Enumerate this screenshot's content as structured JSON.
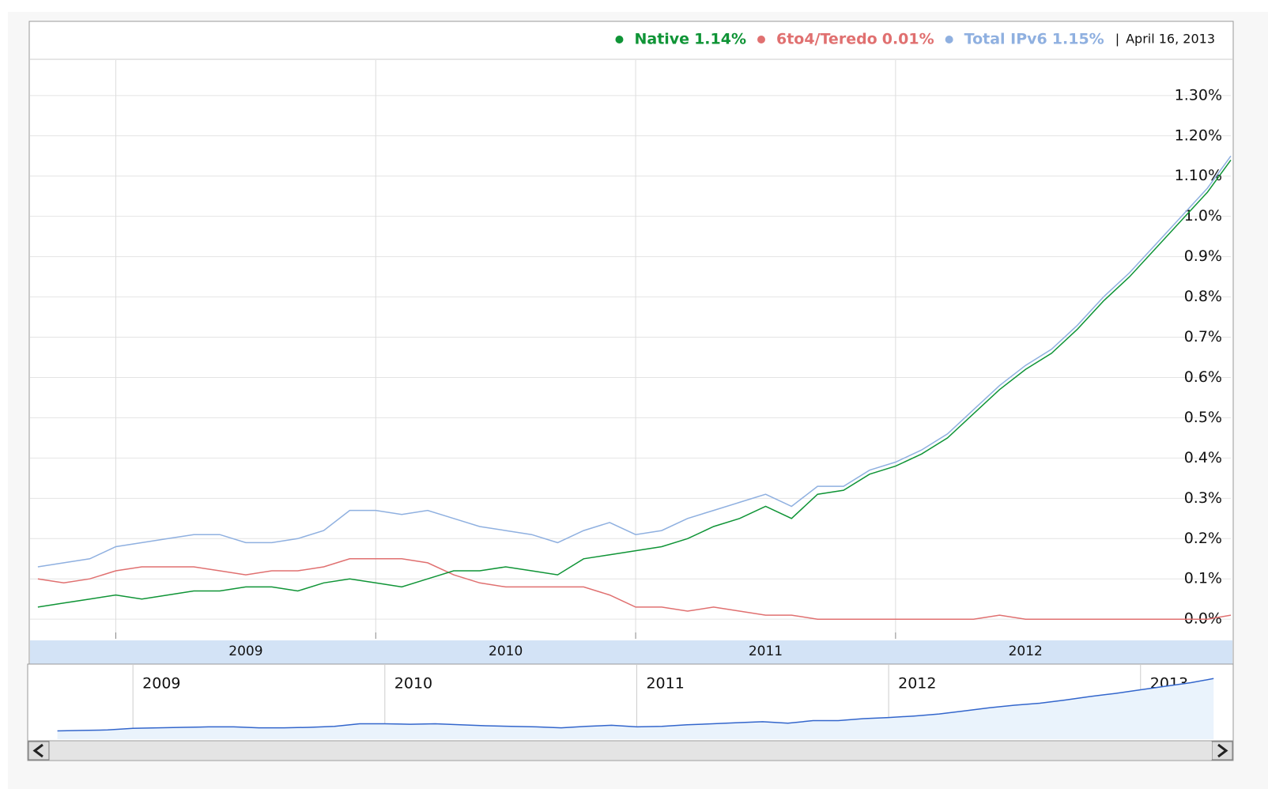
{
  "chart_data": {
    "type": "line",
    "date_label": "April 16, 2013",
    "x": [
      2008.7,
      2008.8,
      2008.9,
      2009.0,
      2009.1,
      2009.2,
      2009.3,
      2009.4,
      2009.5,
      2009.6,
      2009.7,
      2009.8,
      2009.9,
      2010.0,
      2010.1,
      2010.2,
      2010.3,
      2010.4,
      2010.5,
      2010.6,
      2010.7,
      2010.8,
      2010.9,
      2011.0,
      2011.1,
      2011.2,
      2011.3,
      2011.4,
      2011.5,
      2011.6,
      2011.7,
      2011.8,
      2011.9,
      2012.0,
      2012.1,
      2012.2,
      2012.3,
      2012.4,
      2012.5,
      2012.6,
      2012.7,
      2012.8,
      2012.9,
      2013.0,
      2013.1,
      2013.2,
      2013.29
    ],
    "series": [
      {
        "name": "Total IPv6",
        "latest_label": "1.15%",
        "color": "#8fb0e0",
        "values": [
          0.13,
          0.14,
          0.15,
          0.18,
          0.19,
          0.2,
          0.21,
          0.21,
          0.19,
          0.19,
          0.2,
          0.22,
          0.27,
          0.27,
          0.26,
          0.27,
          0.25,
          0.23,
          0.22,
          0.21,
          0.19,
          0.22,
          0.24,
          0.21,
          0.22,
          0.25,
          0.27,
          0.29,
          0.31,
          0.28,
          0.33,
          0.33,
          0.37,
          0.39,
          0.42,
          0.46,
          0.52,
          0.58,
          0.63,
          0.67,
          0.73,
          0.8,
          0.86,
          0.93,
          1.0,
          1.07,
          1.15
        ]
      },
      {
        "name": "6to4/Teredo",
        "latest_label": "0.01%",
        "color": "#e07070",
        "values": [
          0.1,
          0.09,
          0.1,
          0.12,
          0.13,
          0.13,
          0.13,
          0.12,
          0.11,
          0.12,
          0.12,
          0.13,
          0.15,
          0.15,
          0.15,
          0.14,
          0.11,
          0.09,
          0.08,
          0.08,
          0.08,
          0.08,
          0.06,
          0.03,
          0.03,
          0.02,
          0.03,
          0.02,
          0.01,
          0.01,
          0.0,
          0.0,
          0.0,
          0.0,
          0.0,
          0.0,
          0.0,
          0.01,
          0.0,
          0.0,
          0.0,
          0.0,
          0.0,
          0.0,
          0.0,
          0.0,
          0.01
        ]
      },
      {
        "name": "Native",
        "latest_label": "1.14%",
        "color": "#0f9436",
        "values": [
          0.03,
          0.04,
          0.05,
          0.06,
          0.05,
          0.06,
          0.07,
          0.07,
          0.08,
          0.08,
          0.07,
          0.09,
          0.1,
          0.09,
          0.08,
          0.1,
          0.12,
          0.12,
          0.13,
          0.12,
          0.11,
          0.15,
          0.16,
          0.17,
          0.18,
          0.2,
          0.23,
          0.25,
          0.28,
          0.25,
          0.31,
          0.32,
          0.36,
          0.38,
          0.41,
          0.45,
          0.51,
          0.57,
          0.62,
          0.66,
          0.72,
          0.79,
          0.85,
          0.92,
          0.99,
          1.06,
          1.14
        ]
      }
    ],
    "legend_order": [
      2,
      1,
      0
    ],
    "xlim": [
      2008.67,
      2013.29
    ],
    "xticks": [
      2009,
      2010,
      2011,
      2012
    ],
    "ylim": [
      -0.033,
      1.388
    ],
    "yticks": [
      {
        "value": 0,
        "label": "0.0%"
      },
      {
        "value": 0.1,
        "label": "0.1%"
      },
      {
        "value": 0.2,
        "label": "0.2%"
      },
      {
        "value": 0.3,
        "label": "0.3%"
      },
      {
        "value": 0.4,
        "label": "0.4%"
      },
      {
        "value": 0.5,
        "label": "0.5%"
      },
      {
        "value": 0.6,
        "label": "0.6%"
      },
      {
        "value": 0.7,
        "label": "0.7%"
      },
      {
        "value": 0.8,
        "label": "0.8%"
      },
      {
        "value": 0.9,
        "label": "0.9%"
      },
      {
        "value": 1.0,
        "label": "1.0%"
      },
      {
        "value": 1.1,
        "label": "1.10%"
      },
      {
        "value": 1.2,
        "label": "1.20%"
      },
      {
        "value": 1.3,
        "label": "1.30%"
      }
    ],
    "grid": true,
    "navigator": {
      "xlim": [
        2008.67,
        2013.28
      ],
      "xticks": [
        2009,
        2010,
        2011,
        2012,
        2013
      ],
      "series_index": 0,
      "color": "#3366cc"
    }
  }
}
